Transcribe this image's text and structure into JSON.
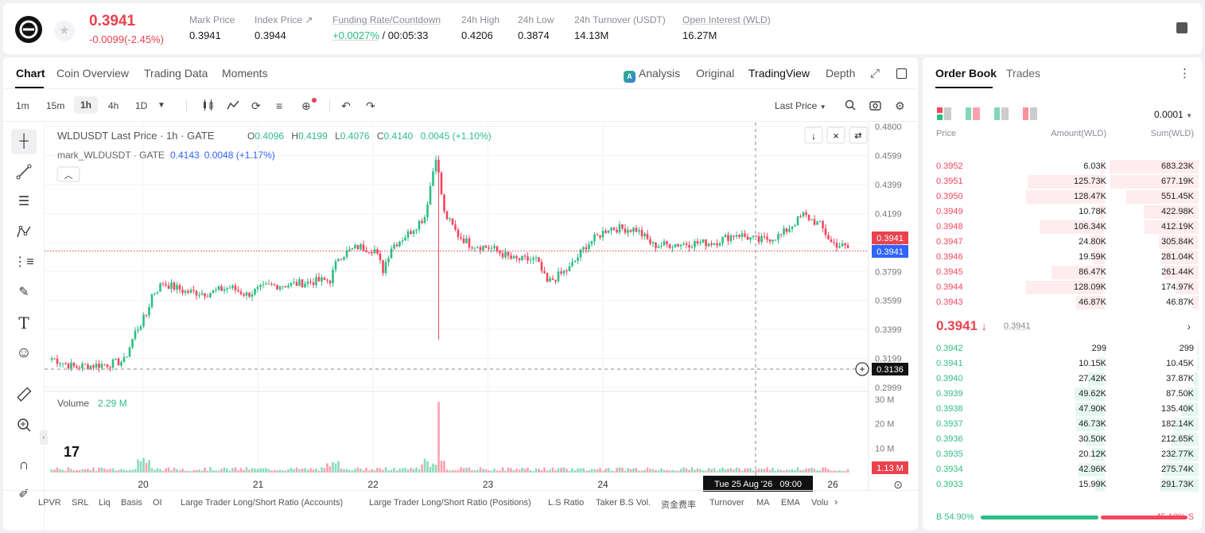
{
  "header": {
    "price": "0.3941",
    "change": "-0.0099(-2.45%)",
    "stats": [
      {
        "label": "Mark Price",
        "value": "0.3941"
      },
      {
        "label": "Index Price ↗",
        "value": "0.3944"
      },
      {
        "label": "Funding Rate/Countdown",
        "value": "+0.0027%",
        "value2": "/ 00:05:33"
      },
      {
        "label": "24h High",
        "value": "0.4206"
      },
      {
        "label": "24h Low",
        "value": "0.3874"
      },
      {
        "label": "24h Turnover (USDT)",
        "value": "14.13M"
      },
      {
        "label": "Open Interest (WLD)",
        "value": "16.27M"
      }
    ]
  },
  "chart_panel": {
    "tabs": [
      "Chart",
      "Coin Overview",
      "Trading Data",
      "Moments"
    ],
    "views": [
      "Analysis",
      "Original",
      "TradingView",
      "Depth"
    ],
    "timeframes": [
      "1m",
      "15m",
      "1h",
      "4h",
      "1D"
    ],
    "price_source": "Last Price",
    "legend": {
      "symbol": "WLDUSDT Last Price · 1h · GATE",
      "o_label": "O",
      "o": "0.4096",
      "h_label": "H",
      "h": "0.4199",
      "l_label": "L",
      "l": "0.4076",
      "c_label": "C",
      "c": "0.4140",
      "change": "0.0045 (+1.10%)",
      "mark_label": "mark_WLDUSDT · GATE",
      "mark_value": "0.4143",
      "mark_change": "0.0048 (+1.17%)"
    },
    "price_axis": [
      "0.4800",
      "0.4599",
      "0.4399",
      "0.4199",
      "0.3999",
      "0.3799",
      "0.3599",
      "0.3399",
      "0.3199",
      "0.2999"
    ],
    "last_price_tag": "0.3941",
    "mark_price_tag": "0.3941",
    "crosshair_price": "0.3136",
    "volume_label": "Volume",
    "volume_value": "2.29 M",
    "volume_axis": [
      "30 M",
      "20 M",
      "10 M"
    ],
    "volume_tag": "1.13 M",
    "time_axis": [
      "20",
      "21",
      "22",
      "23",
      "24",
      "26"
    ],
    "crosshair_time": "Tue 25 Aug '26   09:00",
    "indicators": [
      "LPVR",
      "SRL",
      "Liq",
      "Basis",
      "OI",
      "Large Trader Long/Short Ratio (Accounts)",
      "Large Trader Long/Short Ratio (Positions)",
      "L.S Ratio",
      "Taker B.S Vol.",
      "资金费率",
      "Turnover",
      "MA",
      "EMA",
      "Volu"
    ]
  },
  "chart_data": {
    "type": "candlestick",
    "interval": "1h",
    "ylim": [
      0.2999,
      0.48
    ],
    "volume_ylim": [
      0,
      30
    ],
    "series": [
      {
        "name": "price",
        "anchors": [
          [
            0,
            0.32
          ],
          [
            8,
            0.314
          ],
          [
            20,
            0.316
          ],
          [
            26,
            0.318
          ],
          [
            30,
            0.338
          ],
          [
            34,
            0.35
          ],
          [
            36,
            0.364
          ],
          [
            40,
            0.372
          ],
          [
            48,
            0.366
          ],
          [
            56,
            0.365
          ],
          [
            64,
            0.369
          ],
          [
            70,
            0.364
          ],
          [
            78,
            0.37
          ],
          [
            86,
            0.371
          ],
          [
            94,
            0.373
          ],
          [
            100,
            0.374
          ],
          [
            103,
            0.39
          ],
          [
            110,
            0.397
          ],
          [
            116,
            0.395
          ],
          [
            119,
            0.381
          ],
          [
            122,
            0.397
          ],
          [
            128,
            0.406
          ],
          [
            134,
            0.418
          ],
          [
            138,
            0.46
          ],
          [
            141,
            0.42
          ],
          [
            146,
            0.405
          ],
          [
            150,
            0.399
          ],
          [
            158,
            0.396
          ],
          [
            166,
            0.388
          ],
          [
            174,
            0.388
          ],
          [
            178,
            0.372
          ],
          [
            186,
            0.382
          ],
          [
            192,
            0.398
          ],
          [
            200,
            0.41
          ],
          [
            210,
            0.409
          ],
          [
            216,
            0.398
          ],
          [
            226,
            0.399
          ],
          [
            238,
            0.4
          ],
          [
            246,
            0.406
          ],
          [
            254,
            0.401
          ],
          [
            262,
            0.405
          ],
          [
            270,
            0.419
          ],
          [
            276,
            0.412
          ],
          [
            280,
            0.4
          ],
          [
            286,
            0.396
          ]
        ]
      }
    ]
  },
  "order_book": {
    "tabs": [
      "Order Book",
      "Trades"
    ],
    "precision": "0.0001",
    "headers": [
      "Price",
      "Amount(WLD)",
      "Sum(WLD)"
    ],
    "asks": [
      {
        "price": "0.3952",
        "amount": "6.03K",
        "sum": "683.23K",
        "amount_n": 6.03,
        "sum_n": 683.23
      },
      {
        "price": "0.3951",
        "amount": "125.73K",
        "sum": "677.19K",
        "amount_n": 125.73,
        "sum_n": 677.19
      },
      {
        "price": "0.3950",
        "amount": "128.47K",
        "sum": "551.45K",
        "amount_n": 128.47,
        "sum_n": 551.45
      },
      {
        "price": "0.3949",
        "amount": "10.78K",
        "sum": "422.98K",
        "amount_n": 10.78,
        "sum_n": 422.98
      },
      {
        "price": "0.3948",
        "amount": "106.34K",
        "sum": "412.19K",
        "amount_n": 106.34,
        "sum_n": 412.19
      },
      {
        "price": "0.3947",
        "amount": "24.80K",
        "sum": "305.84K",
        "amount_n": 24.8,
        "sum_n": 305.84
      },
      {
        "price": "0.3946",
        "amount": "19.59K",
        "sum": "281.04K",
        "amount_n": 19.59,
        "sum_n": 281.04
      },
      {
        "price": "0.3945",
        "amount": "86.47K",
        "sum": "261.44K",
        "amount_n": 86.47,
        "sum_n": 261.44,
        "highlight": true
      },
      {
        "price": "0.3944",
        "amount": "128.09K",
        "sum": "174.97K",
        "amount_n": 128.09,
        "sum_n": 174.97
      },
      {
        "price": "0.3943",
        "amount": "46.87K",
        "sum": "46.87K",
        "amount_n": 46.87,
        "sum_n": 46.87
      }
    ],
    "mid_price": "0.3941",
    "mid_arrow": "↓",
    "mark_price": "0.3941",
    "bids": [
      {
        "price": "0.3942",
        "amount": "299",
        "sum": "299",
        "amount_n": 0.3,
        "sum_n": 0.3
      },
      {
        "price": "0.3941",
        "amount": "10.15K",
        "sum": "10.45K",
        "amount_n": 10.15,
        "sum_n": 10.45
      },
      {
        "price": "0.3940",
        "amount": "27.42K",
        "sum": "37.87K",
        "amount_n": 27.42,
        "sum_n": 37.87
      },
      {
        "price": "0.3939",
        "amount": "49.62K",
        "sum": "87.50K",
        "amount_n": 49.62,
        "sum_n": 87.5
      },
      {
        "price": "0.3938",
        "amount": "47.90K",
        "sum": "135.40K",
        "amount_n": 47.9,
        "sum_n": 135.4
      },
      {
        "price": "0.3937",
        "amount": "46.73K",
        "sum": "182.14K",
        "amount_n": 46.73,
        "sum_n": 182.14
      },
      {
        "price": "0.3936",
        "amount": "30.50K",
        "sum": "212.65K",
        "amount_n": 30.5,
        "sum_n": 212.65
      },
      {
        "price": "0.3935",
        "amount": "20.12K",
        "sum": "232.77K",
        "amount_n": 20.12,
        "sum_n": 232.77,
        "highlight": true
      },
      {
        "price": "0.3934",
        "amount": "42.96K",
        "sum": "275.74K",
        "amount_n": 42.96,
        "sum_n": 275.74
      },
      {
        "price": "0.3933",
        "amount": "15.99K",
        "sum": "291.73K",
        "amount_n": 15.99,
        "sum_n": 291.73
      }
    ],
    "buy_ratio": "B 54.90%",
    "sell_ratio": "45.10% S",
    "buy_ratio_n": 54.9
  },
  "colors": {
    "up": "#2ebd85",
    "down": "#f6465d",
    "accent": "#e8434f",
    "mark": "#3164ff"
  }
}
